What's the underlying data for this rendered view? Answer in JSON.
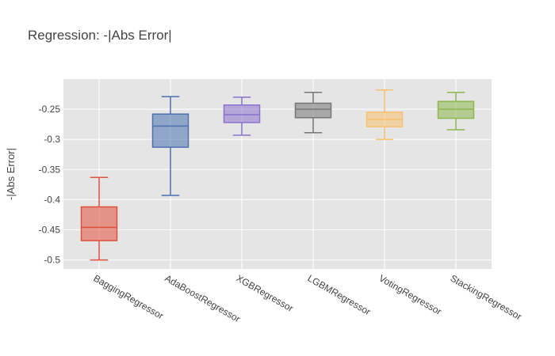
{
  "chart_data": {
    "type": "box",
    "title": "Regression: -|Abs Error|",
    "xlabel": "",
    "ylabel": "-|Abs Error|",
    "ylim": [
      -0.515,
      -0.2
    ],
    "yticks": [
      -0.25,
      -0.3,
      -0.35,
      -0.4,
      -0.45,
      -0.5
    ],
    "ytick_labels": [
      "-0.25",
      "-0.3",
      "-0.35",
      "-0.4",
      "-0.45",
      "-0.5"
    ],
    "grid": true,
    "legend": "none",
    "categories": [
      "BaggingRegressor",
      "AdaBoostRegressor",
      "XGBRegressor",
      "LGBMRegressor",
      "VotingRegressor",
      "StackingRegressor"
    ],
    "series": [
      {
        "category": "BaggingRegressor",
        "min": -0.5,
        "q1": -0.468,
        "median": -0.446,
        "q3": -0.412,
        "max": -0.363,
        "color": "#E2513A"
      },
      {
        "category": "AdaBoostRegressor",
        "min": -0.393,
        "q1": -0.313,
        "median": -0.278,
        "q3": -0.258,
        "max": -0.229,
        "color": "#4A72B0"
      },
      {
        "category": "XGBRegressor",
        "min": -0.293,
        "q1": -0.272,
        "median": -0.259,
        "q3": -0.243,
        "max": -0.23,
        "color": "#8C72CC"
      },
      {
        "category": "LGBMRegressor",
        "min": -0.289,
        "q1": -0.264,
        "median": -0.25,
        "q3": -0.24,
        "max": -0.222,
        "color": "#777777"
      },
      {
        "category": "VotingRegressor",
        "min": -0.3,
        "q1": -0.279,
        "median": -0.267,
        "q3": -0.255,
        "max": -0.218,
        "color": "#F9C16D"
      },
      {
        "category": "StackingRegressor",
        "min": -0.284,
        "q1": -0.265,
        "median": -0.25,
        "q3": -0.237,
        "max": -0.222,
        "color": "#8CB84E"
      }
    ]
  }
}
